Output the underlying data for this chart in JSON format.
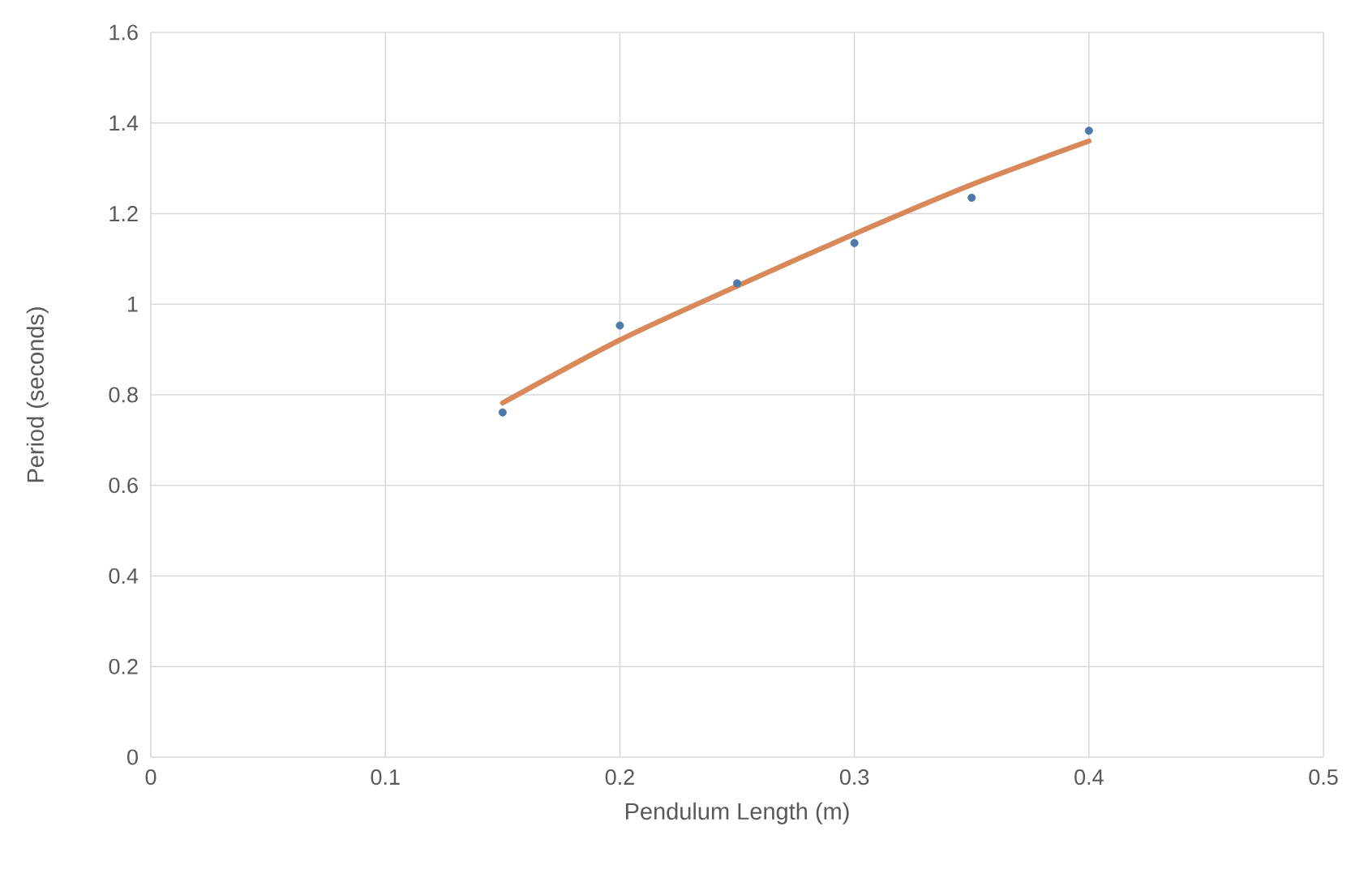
{
  "chart_data": {
    "type": "scatter",
    "xlabel": "Pendulum Length (m)",
    "ylabel": "Period (seconds)",
    "series": [
      {
        "color": "#4e79a7",
        "marker": "circle",
        "x": [
          0.15,
          0.2,
          0.25,
          0.3,
          0.35,
          0.4
        ],
        "values": [
          0.761,
          0.953,
          1.046,
          1.135,
          1.235,
          1.383
        ]
      },
      {
        "type": "line",
        "color": "#d9885a",
        "x": [
          0.15,
          0.2,
          0.25,
          0.3,
          0.35,
          0.4
        ],
        "values": [
          0.782,
          0.921,
          1.04,
          1.155,
          1.264,
          1.36
        ]
      }
    ],
    "xlim": [
      0,
      0.5
    ],
    "xticks": [
      0,
      0.1,
      0.2,
      0.3,
      0.4,
      0.5
    ],
    "ylim": [
      0,
      1.6
    ],
    "yticks": [
      0,
      0.2,
      0.4,
      0.6,
      0.8,
      1,
      1.2,
      1.4,
      1.6
    ],
    "grid": true
  }
}
